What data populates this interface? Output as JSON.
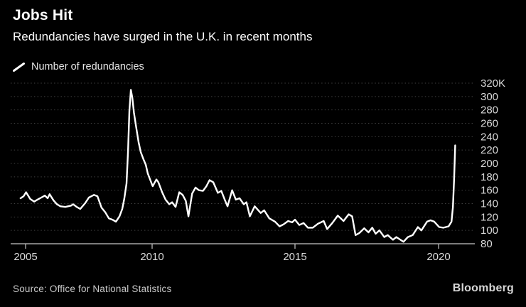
{
  "header": {
    "title": "Jobs Hit",
    "subtitle": "Redundancies have surged in the U.K. in recent months"
  },
  "legend": {
    "label": "Number of redundancies",
    "marker": "white-slash-line-icon"
  },
  "footer": {
    "source": "Source: Office for National Statistics",
    "brand": "Bloomberg"
  },
  "colors": {
    "background": "#000000",
    "line": "#ffffff",
    "grid": "#3f3f3f",
    "axis": "#c6c6c6",
    "tick_label": "#d9d9d9",
    "text": "#ffffff"
  },
  "chart_data": {
    "type": "line",
    "title": "Jobs Hit",
    "subtitle": "Redundancies have surged in the U.K. in recent months",
    "unit": "thousands of redundancies (K)",
    "xlabel": "",
    "ylabel": "",
    "ylim": [
      80,
      320
    ],
    "xlim": [
      2004.8,
      2021.3
    ],
    "grid": "horizontal-dotted",
    "legend_position": "top-left",
    "y_ticks": [
      {
        "value": 320,
        "label": "320K"
      },
      {
        "value": 300,
        "label": "300"
      },
      {
        "value": 280,
        "label": "280"
      },
      {
        "value": 260,
        "label": "260"
      },
      {
        "value": 240,
        "label": "240"
      },
      {
        "value": 220,
        "label": "220"
      },
      {
        "value": 200,
        "label": "200"
      },
      {
        "value": 180,
        "label": "180"
      },
      {
        "value": 160,
        "label": "160"
      },
      {
        "value": 140,
        "label": "140"
      },
      {
        "value": 120,
        "label": "120"
      },
      {
        "value": 100,
        "label": "100"
      },
      {
        "value": 80,
        "label": "80"
      }
    ],
    "x_ticks": [
      {
        "value": 2005,
        "label": "2005"
      },
      {
        "value": 2010,
        "label": "2010"
      },
      {
        "value": 2015,
        "label": "2015"
      },
      {
        "value": 2020,
        "label": "2020"
      }
    ],
    "series": [
      {
        "name": "Number of redundancies",
        "color": "#ffffff",
        "points": [
          [
            2004.8,
            148
          ],
          [
            2004.92,
            151
          ],
          [
            2005.02,
            157
          ],
          [
            2005.18,
            147
          ],
          [
            2005.34,
            143
          ],
          [
            2005.52,
            147
          ],
          [
            2005.62,
            149
          ],
          [
            2005.76,
            152
          ],
          [
            2005.87,
            148
          ],
          [
            2005.95,
            154
          ],
          [
            2006.1,
            145
          ],
          [
            2006.24,
            139
          ],
          [
            2006.38,
            136
          ],
          [
            2006.57,
            135
          ],
          [
            2006.8,
            137
          ],
          [
            2006.88,
            139
          ],
          [
            2007.02,
            135
          ],
          [
            2007.16,
            132
          ],
          [
            2007.36,
            141
          ],
          [
            2007.5,
            149
          ],
          [
            2007.7,
            153
          ],
          [
            2007.84,
            151
          ],
          [
            2008.0,
            134
          ],
          [
            2008.15,
            127
          ],
          [
            2008.29,
            118
          ],
          [
            2008.43,
            116
          ],
          [
            2008.57,
            113
          ],
          [
            2008.71,
            121
          ],
          [
            2008.82,
            132
          ],
          [
            2008.9,
            147
          ],
          [
            2008.99,
            170
          ],
          [
            2009.05,
            220
          ],
          [
            2009.1,
            278
          ],
          [
            2009.16,
            310
          ],
          [
            2009.22,
            298
          ],
          [
            2009.28,
            276
          ],
          [
            2009.38,
            252
          ],
          [
            2009.47,
            231
          ],
          [
            2009.55,
            217
          ],
          [
            2009.66,
            206
          ],
          [
            2009.75,
            198
          ],
          [
            2009.83,
            185
          ],
          [
            2009.94,
            174
          ],
          [
            2010.02,
            166
          ],
          [
            2010.15,
            176
          ],
          [
            2010.22,
            172
          ],
          [
            2010.35,
            157
          ],
          [
            2010.47,
            146
          ],
          [
            2010.6,
            139
          ],
          [
            2010.7,
            142
          ],
          [
            2010.82,
            135
          ],
          [
            2010.95,
            157
          ],
          [
            2011.07,
            153
          ],
          [
            2011.18,
            144
          ],
          [
            2011.27,
            121
          ],
          [
            2011.4,
            155
          ],
          [
            2011.52,
            164
          ],
          [
            2011.64,
            160
          ],
          [
            2011.78,
            159
          ],
          [
            2011.9,
            166
          ],
          [
            2012.01,
            175
          ],
          [
            2012.14,
            172
          ],
          [
            2012.3,
            156
          ],
          [
            2012.42,
            159
          ],
          [
            2012.55,
            145
          ],
          [
            2012.64,
            136
          ],
          [
            2012.8,
            160
          ],
          [
            2012.93,
            146
          ],
          [
            2013.06,
            148
          ],
          [
            2013.21,
            139
          ],
          [
            2013.3,
            142
          ],
          [
            2013.42,
            121
          ],
          [
            2013.59,
            136
          ],
          [
            2013.8,
            126
          ],
          [
            2013.92,
            130
          ],
          [
            2014.1,
            118
          ],
          [
            2014.3,
            113
          ],
          [
            2014.46,
            106
          ],
          [
            2014.6,
            109
          ],
          [
            2014.76,
            114
          ],
          [
            2014.9,
            112
          ],
          [
            2015.0,
            116
          ],
          [
            2015.15,
            108
          ],
          [
            2015.3,
            111
          ],
          [
            2015.45,
            104
          ],
          [
            2015.62,
            104
          ],
          [
            2015.8,
            110
          ],
          [
            2016.0,
            114
          ],
          [
            2016.12,
            102
          ],
          [
            2016.3,
            111
          ],
          [
            2016.49,
            122
          ],
          [
            2016.69,
            114
          ],
          [
            2016.87,
            124
          ],
          [
            2016.99,
            121
          ],
          [
            2017.11,
            93
          ],
          [
            2017.24,
            96
          ],
          [
            2017.41,
            103
          ],
          [
            2017.56,
            97
          ],
          [
            2017.69,
            104
          ],
          [
            2017.81,
            95
          ],
          [
            2017.94,
            100
          ],
          [
            2018.11,
            90
          ],
          [
            2018.23,
            93
          ],
          [
            2018.41,
            86
          ],
          [
            2018.53,
            90
          ],
          [
            2018.78,
            83
          ],
          [
            2018.93,
            90
          ],
          [
            2019.1,
            93
          ],
          [
            2019.28,
            105
          ],
          [
            2019.4,
            100
          ],
          [
            2019.6,
            113
          ],
          [
            2019.72,
            115
          ],
          [
            2019.85,
            113
          ],
          [
            2020.02,
            105
          ],
          [
            2020.17,
            104
          ],
          [
            2020.35,
            106
          ],
          [
            2020.45,
            113
          ],
          [
            2020.5,
            135
          ],
          [
            2020.54,
            175
          ],
          [
            2020.58,
            227
          ]
        ]
      }
    ]
  }
}
